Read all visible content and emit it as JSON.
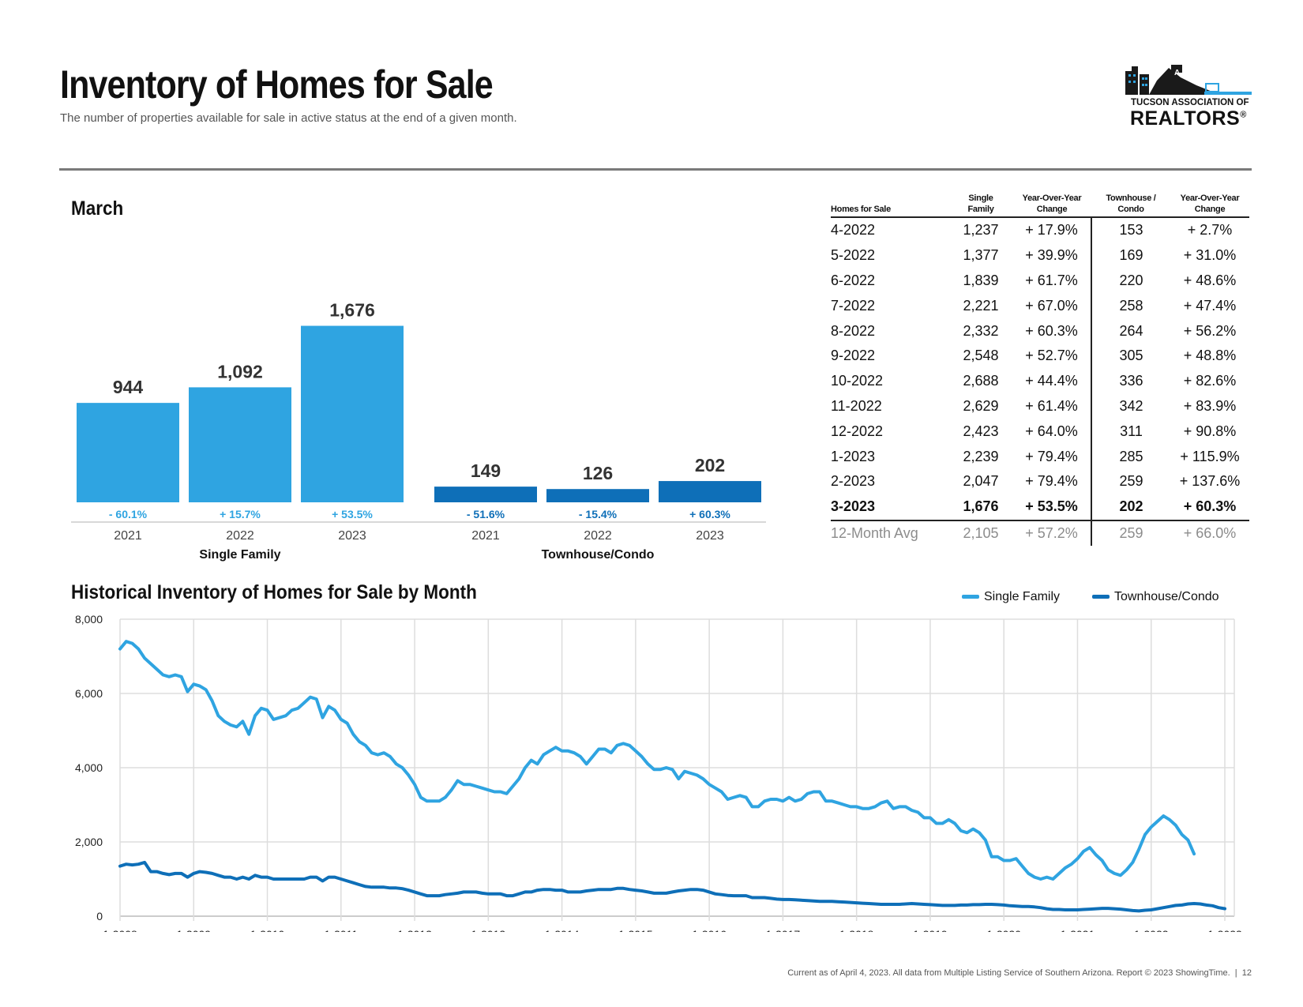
{
  "header": {
    "title": "Inventory of Homes for Sale",
    "subtitle": "The number of properties available for sale in active status at the end of a given month."
  },
  "logo": {
    "line1": "TUCSON ASSOCIATION OF",
    "line2": "REALTORS",
    "mark": "®"
  },
  "colors": {
    "single_family": "#2fa4e1",
    "townhouse": "#0e6fb8",
    "grid": "#dddddd"
  },
  "bar_section": {
    "title": "March"
  },
  "table": {
    "headers": [
      "Homes for Sale",
      "Single Family",
      "Year-Over-Year Change",
      "Townhouse / Condo",
      "Year-Over-Year Change"
    ],
    "rows": [
      [
        "4-2022",
        "1,237",
        "+ 17.9%",
        "153",
        "+ 2.7%"
      ],
      [
        "5-2022",
        "1,377",
        "+ 39.9%",
        "169",
        "+ 31.0%"
      ],
      [
        "6-2022",
        "1,839",
        "+ 61.7%",
        "220",
        "+ 48.6%"
      ],
      [
        "7-2022",
        "2,221",
        "+ 67.0%",
        "258",
        "+ 47.4%"
      ],
      [
        "8-2022",
        "2,332",
        "+ 60.3%",
        "264",
        "+ 56.2%"
      ],
      [
        "9-2022",
        "2,548",
        "+ 52.7%",
        "305",
        "+ 48.8%"
      ],
      [
        "10-2022",
        "2,688",
        "+ 44.4%",
        "336",
        "+ 82.6%"
      ],
      [
        "11-2022",
        "2,629",
        "+ 61.4%",
        "342",
        "+ 83.9%"
      ],
      [
        "12-2022",
        "2,423",
        "+ 64.0%",
        "311",
        "+ 90.8%"
      ],
      [
        "1-2023",
        "2,239",
        "+ 79.4%",
        "285",
        "+ 115.9%"
      ],
      [
        "2-2023",
        "2,047",
        "+ 79.4%",
        "259",
        "+ 137.6%"
      ],
      [
        "3-2023",
        "1,676",
        "+ 53.5%",
        "202",
        "+ 60.3%"
      ]
    ],
    "avg_row": [
      "12-Month Avg",
      "2,105",
      "+ 57.2%",
      "259",
      "+ 66.0%"
    ]
  },
  "history_section": {
    "title": "Historical Inventory of Homes for Sale by Month"
  },
  "footer": {
    "text": "Current as of April 4, 2023. All data from Multiple Listing Service of Southern Arizona. Report © 2023 ShowingTime.",
    "page": "12"
  },
  "chart_data": [
    {
      "type": "bar",
      "title": "March",
      "groups": [
        {
          "name": "Single Family",
          "categories": [
            "2021",
            "2022",
            "2023"
          ],
          "values": [
            944,
            1092,
            1676
          ],
          "value_labels": [
            "944",
            "1,092",
            "1,676"
          ],
          "changes": [
            "- 60.1%",
            "+ 15.7%",
            "+ 53.5%"
          ]
        },
        {
          "name": "Townhouse/Condo",
          "categories": [
            "2021",
            "2022",
            "2023"
          ],
          "values": [
            149,
            126,
            202
          ],
          "value_labels": [
            "149",
            "126",
            "202"
          ],
          "changes": [
            "- 51.6%",
            "- 15.4%",
            "+ 60.3%"
          ]
        }
      ],
      "ylim": [
        0,
        2250
      ]
    },
    {
      "type": "line",
      "title": "Historical Inventory of Homes for Sale by Month",
      "xlabel": "",
      "ylabel": "",
      "ylim": [
        0,
        8000
      ],
      "y_ticks": [
        "0",
        "2,000",
        "4,000",
        "6,000",
        "8,000"
      ],
      "x_ticks": [
        "1-2008",
        "1-2009",
        "1-2010",
        "1-2011",
        "1-2012",
        "1-2013",
        "1-2014",
        "1-2015",
        "1-2016",
        "1-2017",
        "1-2018",
        "1-2019",
        "1-2020",
        "1-2021",
        "1-2022",
        "1-2023"
      ],
      "x_start": "1-2008",
      "x_end": "3-2023",
      "legend": "top-right",
      "grid": true,
      "series": [
        {
          "name": "Single Family",
          "values": [
            7200,
            7400,
            7350,
            7200,
            6950,
            6800,
            6650,
            6500,
            6450,
            6500,
            6450,
            6050,
            6250,
            6200,
            6100,
            5800,
            5400,
            5250,
            5150,
            5100,
            5250,
            4900,
            5400,
            5600,
            5550,
            5300,
            5350,
            5400,
            5550,
            5600,
            5750,
            5900,
            5850,
            5350,
            5650,
            5550,
            5300,
            5200,
            4900,
            4700,
            4600,
            4400,
            4350,
            4400,
            4300,
            4100,
            4000,
            3800,
            3550,
            3200,
            3100,
            3100,
            3100,
            3200,
            3400,
            3650,
            3550,
            3550,
            3500,
            3450,
            3400,
            3350,
            3350,
            3300,
            3500,
            3700,
            4000,
            4200,
            4100,
            4350,
            4450,
            4550,
            4450,
            4450,
            4400,
            4300,
            4100,
            4300,
            4500,
            4500,
            4400,
            4600,
            4650,
            4600,
            4450,
            4300,
            4100,
            3950,
            3950,
            4000,
            3950,
            3700,
            3900,
            3850,
            3800,
            3700,
            3550,
            3450,
            3350,
            3150,
            3200,
            3250,
            3200,
            2950,
            2950,
            3100,
            3150,
            3150,
            3100,
            3200,
            3100,
            3150,
            3300,
            3350,
            3350,
            3100,
            3100,
            3050,
            3000,
            2950,
            2950,
            2900,
            2900,
            2950,
            3050,
            3100,
            2900,
            2950,
            2950,
            2850,
            2800,
            2650,
            2650,
            2500,
            2500,
            2600,
            2500,
            2300,
            2250,
            2350,
            2250,
            2050,
            1600,
            1600,
            1500,
            1500,
            1550,
            1350,
            1150,
            1050,
            1000,
            1050,
            1000,
            1150,
            1300,
            1400,
            1550,
            1750,
            1850,
            1650,
            1500,
            1250,
            1150,
            1100,
            1250,
            1450,
            1800,
            2200,
            2400,
            2550,
            2700,
            2600,
            2450,
            2200,
            2050,
            1676
          ]
        },
        {
          "name": "Townhouse/Condo",
          "values": [
            1350,
            1400,
            1380,
            1400,
            1450,
            1200,
            1200,
            1150,
            1120,
            1150,
            1150,
            1050,
            1150,
            1200,
            1180,
            1150,
            1100,
            1050,
            1050,
            1000,
            1050,
            1000,
            1100,
            1050,
            1050,
            1000,
            1000,
            1000,
            1000,
            1000,
            1000,
            1050,
            1050,
            950,
            1050,
            1050,
            1000,
            950,
            900,
            850,
            800,
            780,
            780,
            780,
            760,
            760,
            740,
            700,
            650,
            600,
            550,
            550,
            550,
            580,
            600,
            620,
            650,
            650,
            650,
            620,
            600,
            600,
            600,
            550,
            550,
            600,
            650,
            650,
            700,
            720,
            720,
            700,
            700,
            650,
            650,
            650,
            680,
            700,
            720,
            720,
            720,
            750,
            750,
            720,
            700,
            680,
            650,
            620,
            620,
            620,
            650,
            680,
            700,
            720,
            720,
            700,
            650,
            600,
            580,
            560,
            550,
            550,
            550,
            500,
            500,
            500,
            480,
            460,
            450,
            450,
            440,
            430,
            420,
            410,
            400,
            400,
            400,
            390,
            380,
            370,
            360,
            350,
            340,
            330,
            320,
            320,
            320,
            320,
            330,
            340,
            330,
            320,
            310,
            300,
            290,
            290,
            290,
            300,
            300,
            310,
            310,
            320,
            320,
            310,
            300,
            280,
            270,
            260,
            260,
            250,
            230,
            200,
            180,
            180,
            170,
            170,
            170,
            180,
            190,
            200,
            210,
            210,
            200,
            190,
            170,
            150,
            140,
            160,
            170,
            200,
            230,
            260,
            290,
            300,
            330,
            340,
            330,
            300,
            280,
            230,
            202
          ]
        }
      ]
    }
  ]
}
